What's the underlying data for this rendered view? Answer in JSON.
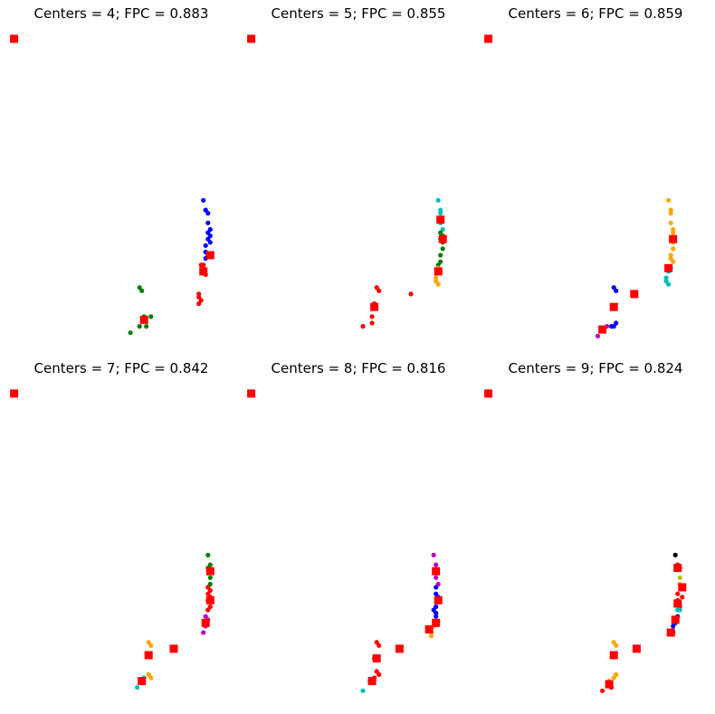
{
  "chart_data": [
    {
      "type": "scatter",
      "title": "Centers = 4; FPC = 0.883",
      "xlim": [
        0,
        100
      ],
      "ylim": [
        0,
        100
      ],
      "axes_visible": false,
      "grid": false,
      "series": [
        {
          "color": "#0000ff",
          "points": [
            [
              86,
              45
            ],
            [
              87,
              42
            ],
            [
              88,
              41
            ],
            [
              88,
              38
            ],
            [
              89,
              36
            ],
            [
              88,
              35
            ],
            [
              89,
              34
            ],
            [
              88,
              33
            ],
            [
              89,
              32
            ],
            [
              87,
              31
            ],
            [
              87,
              29
            ],
            [
              88,
              28
            ],
            [
              87,
              27
            ],
            [
              86,
              25
            ]
          ]
        },
        {
          "color": "#ff0000",
          "points": [
            [
              85,
              25
            ],
            [
              86,
              25
            ],
            [
              86,
              24
            ],
            [
              86,
              23
            ],
            [
              87,
              22
            ],
            [
              84,
              16
            ],
            [
              84,
              15
            ],
            [
              85,
              14
            ],
            [
              84,
              13
            ]
          ]
        },
        {
          "color": "#008000",
          "points": [
            [
              58,
              18
            ],
            [
              59,
              17
            ],
            [
              63,
              9
            ],
            [
              60,
              9
            ],
            [
              58,
              6
            ],
            [
              61,
              6
            ],
            [
              54,
              4
            ]
          ]
        }
      ],
      "centers": [
        [
          3,
          95
        ],
        [
          89,
          28
        ],
        [
          86,
          23
        ],
        [
          60,
          8
        ]
      ]
    },
    {
      "type": "scatter",
      "title": "Centers = 5; FPC = 0.855",
      "xlim": [
        0,
        100
      ],
      "ylim": [
        0,
        100
      ],
      "axes_visible": false,
      "grid": false,
      "series": [
        {
          "color": "#00bfbf",
          "points": [
            [
              85,
              45
            ],
            [
              86,
              42
            ],
            [
              86,
              41
            ],
            [
              86,
              38
            ],
            [
              87,
              36
            ]
          ]
        },
        {
          "color": "#008000",
          "points": [
            [
              86,
              35
            ],
            [
              87,
              34
            ],
            [
              86,
              33
            ],
            [
              87,
              32
            ],
            [
              87,
              30
            ],
            [
              86,
              28
            ],
            [
              86,
              26
            ],
            [
              85,
              25
            ]
          ]
        },
        {
          "color": "#ffa500",
          "points": [
            [
              85,
              24
            ],
            [
              86,
              23
            ],
            [
              84,
              21
            ],
            [
              84,
              20
            ],
            [
              85,
              19
            ]
          ]
        },
        {
          "color": "#ff0000",
          "points": [
            [
              73,
              16
            ],
            [
              58,
              18
            ],
            [
              59,
              17
            ],
            [
              57,
              13
            ],
            [
              57,
              12
            ],
            [
              56,
              9
            ],
            [
              56,
              7
            ],
            [
              52,
              6
            ]
          ]
        }
      ],
      "centers": [
        [
          3,
          95
        ],
        [
          86,
          39
        ],
        [
          87,
          33
        ],
        [
          85,
          23
        ],
        [
          57,
          12
        ]
      ]
    },
    {
      "type": "scatter",
      "title": "Centers = 6; FPC = 0.859",
      "xlim": [
        0,
        100
      ],
      "ylim": [
        0,
        100
      ],
      "axes_visible": false,
      "grid": false,
      "series": [
        {
          "color": "#ffa500",
          "points": [
            [
              82,
              45
            ],
            [
              83,
              42
            ],
            [
              83,
              41
            ],
            [
              83,
              38
            ],
            [
              84,
              36
            ],
            [
              84,
              35
            ],
            [
              83,
              33
            ],
            [
              84,
              32
            ],
            [
              84,
              30
            ],
            [
              83,
              28
            ],
            [
              83,
              27
            ],
            [
              84,
              26
            ]
          ]
        },
        {
          "color": "#00bfbf",
          "points": [
            [
              82,
              24
            ],
            [
              83,
              24
            ],
            [
              82,
              23
            ],
            [
              81,
              21
            ],
            [
              81,
              20
            ],
            [
              82,
              19
            ]
          ]
        },
        {
          "color": "#0000ff",
          "points": [
            [
              58,
              18
            ],
            [
              59,
              17
            ],
            [
              59,
              7
            ],
            [
              58,
              6
            ],
            [
              57,
              6
            ]
          ]
        },
        {
          "color": "#bf00bf",
          "points": [
            [
              55,
              6
            ],
            [
              51,
              3
            ]
          ]
        }
      ],
      "centers": [
        [
          3,
          95
        ],
        [
          84,
          33
        ],
        [
          82,
          24
        ],
        [
          67,
          16
        ],
        [
          58,
          12
        ],
        [
          53,
          5
        ]
      ]
    },
    {
      "type": "scatter",
      "title": "Centers = 7; FPC = 0.842",
      "xlim": [
        0,
        100
      ],
      "ylim": [
        0,
        100
      ],
      "axes_visible": false,
      "grid": false,
      "series": [
        {
          "color": "#008000",
          "points": [
            [
              88,
              45
            ],
            [
              89,
              42
            ],
            [
              88,
              41
            ],
            [
              89,
              38
            ],
            [
              89,
              36
            ]
          ]
        },
        {
          "color": "#ff0000",
          "points": [
            [
              88,
              35
            ],
            [
              89,
              34
            ],
            [
              88,
              33
            ],
            [
              89,
              32
            ],
            [
              88,
              31
            ],
            [
              89,
              29
            ],
            [
              88,
              28
            ]
          ]
        },
        {
          "color": "#bf00bf",
          "points": [
            [
              87,
              26
            ],
            [
              88,
              25
            ],
            [
              87,
              24
            ],
            [
              87,
              23
            ],
            [
              86,
              21
            ]
          ]
        },
        {
          "color": "#ffa500",
          "points": [
            [
              62,
              18
            ],
            [
              63,
              17
            ],
            [
              62,
              8
            ],
            [
              63,
              7
            ]
          ]
        },
        {
          "color": "#00bfbf",
          "points": [
            [
              60,
              7
            ],
            [
              57,
              4
            ]
          ]
        }
      ],
      "centers": [
        [
          3,
          95
        ],
        [
          89,
          40
        ],
        [
          89,
          31
        ],
        [
          87,
          24
        ],
        [
          73,
          16
        ],
        [
          62,
          14
        ],
        [
          59,
          6
        ]
      ]
    },
    {
      "type": "scatter",
      "title": "Centers = 8; FPC = 0.816",
      "xlim": [
        0,
        100
      ],
      "ylim": [
        0,
        100
      ],
      "axes_visible": false,
      "grid": false,
      "series": [
        {
          "color": "#bf00bf",
          "points": [
            [
              83,
              45
            ],
            [
              84,
              42
            ],
            [
              84,
              38
            ],
            [
              85,
              36
            ]
          ]
        },
        {
          "color": "#0000ff",
          "points": [
            [
              84,
              35
            ],
            [
              84,
              33
            ],
            [
              85,
              32
            ],
            [
              85,
              31
            ],
            [
              84,
              29
            ],
            [
              83,
              28
            ],
            [
              84,
              27
            ],
            [
              84,
              26
            ]
          ]
        },
        {
          "color": "#ffa500",
          "points": [
            [
              84,
              24
            ],
            [
              83,
              23
            ],
            [
              82,
              21
            ],
            [
              82,
              20
            ]
          ]
        },
        {
          "color": "#ff0000",
          "points": [
            [
              58,
              18
            ],
            [
              59,
              17
            ],
            [
              57,
              13
            ],
            [
              58,
              9
            ],
            [
              59,
              8
            ],
            [
              57,
              7
            ]
          ]
        },
        {
          "color": "#00bfbf",
          "points": [
            [
              55,
              6
            ],
            [
              52,
              3
            ]
          ]
        }
      ],
      "centers": [
        [
          3,
          95
        ],
        [
          84,
          40
        ],
        [
          85,
          31
        ],
        [
          84,
          24
        ],
        [
          81,
          22
        ],
        [
          68,
          16
        ],
        [
          58,
          13
        ],
        [
          56,
          6
        ]
      ]
    },
    {
      "type": "scatter",
      "title": "Centers = 9; FPC = 0.824",
      "xlim": [
        0,
        100
      ],
      "ylim": [
        0,
        100
      ],
      "axes_visible": false,
      "grid": false,
      "series": [
        {
          "color": "#000000",
          "points": [
            [
              85,
              45
            ]
          ]
        },
        {
          "color": "#bfbf00",
          "points": [
            [
              87,
              38
            ],
            [
              87,
              36
            ]
          ]
        },
        {
          "color": "#ff0000",
          "points": [
            [
              86,
              42
            ],
            [
              87,
              41
            ],
            [
              86,
              33
            ],
            [
              88,
              32
            ],
            [
              86,
              31
            ],
            [
              87,
              29
            ]
          ]
        },
        {
          "color": "#00bfbf",
          "points": [
            [
              87,
              30
            ],
            [
              86,
              28
            ],
            [
              87,
              28
            ],
            [
              86,
              26
            ]
          ]
        },
        {
          "color": "#0000ff",
          "points": [
            [
              86,
              26
            ],
            [
              85,
              24
            ],
            [
              84,
              23
            ],
            [
              84,
              21
            ]
          ]
        },
        {
          "color": "#ffa500",
          "points": [
            [
              58,
              18
            ],
            [
              59,
              17
            ],
            [
              59,
              8
            ],
            [
              58,
              7
            ],
            [
              56,
              6
            ]
          ]
        },
        {
          "color": "#ff0000",
          "points": [
            [
              57,
              4
            ],
            [
              53,
              3
            ]
          ]
        }
      ],
      "centers": [
        [
          3,
          95
        ],
        [
          86,
          41
        ],
        [
          88,
          35
        ],
        [
          86,
          30
        ],
        [
          85,
          25
        ],
        [
          83,
          21
        ],
        [
          68,
          16
        ],
        [
          58,
          14
        ],
        [
          56,
          5
        ]
      ]
    }
  ]
}
